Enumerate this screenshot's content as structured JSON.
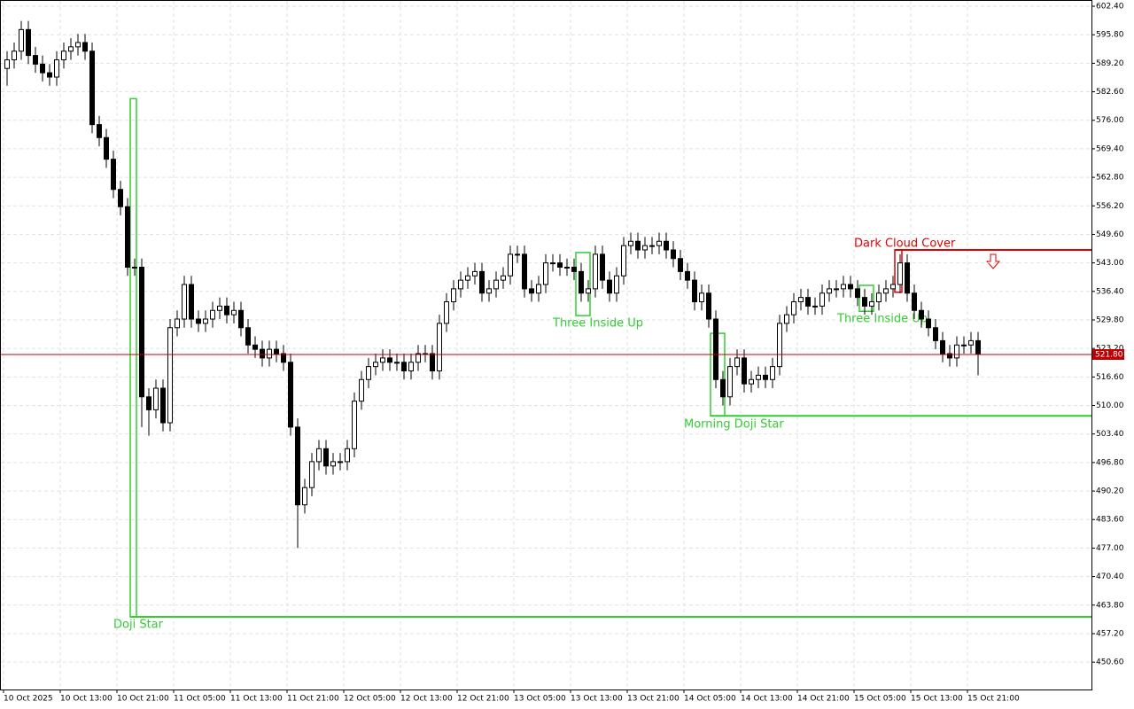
{
  "chart_data": {
    "type": "candlestick",
    "categories": [
      "10 Oct 2025",
      null,
      null,
      null,
      null,
      null,
      null,
      null,
      "10 Oct 13:00",
      null,
      null,
      null,
      null,
      null,
      null,
      null,
      "10 Oct 21:00",
      null,
      null,
      null,
      null,
      null,
      null,
      null,
      "11 Oct 05:00",
      null,
      null,
      null,
      null,
      null,
      null,
      null,
      "11 Oct 13:00",
      null,
      null,
      null,
      null,
      null,
      null,
      null,
      "11 Oct 21:00",
      null,
      null,
      null,
      null,
      null,
      null,
      null,
      "12 Oct 05:00",
      null,
      null,
      null,
      null,
      null,
      null,
      null,
      "12 Oct 13:00",
      null,
      null,
      null,
      null,
      null,
      null,
      null,
      "12 Oct 21:00",
      null,
      null,
      null,
      null,
      null,
      null,
      null,
      "13 Oct 05:00",
      null,
      null,
      null,
      null,
      null,
      null,
      null,
      "13 Oct 13:00",
      null,
      null,
      null,
      null,
      null,
      null,
      null,
      "13 Oct 21:00",
      null,
      null,
      null,
      null,
      null,
      null,
      null,
      "14 Oct 05:00",
      null,
      null,
      null,
      null,
      null,
      null,
      null,
      "14 Oct 13:00",
      null,
      null,
      null,
      null,
      null,
      null,
      null,
      "14 Oct 21:00",
      null,
      null,
      null,
      null,
      null,
      null,
      null,
      "15 Oct 05:00",
      null,
      null,
      null,
      null,
      null,
      null,
      null,
      "15 Oct 13:00",
      null,
      null,
      null,
      null,
      null,
      null,
      null,
      "15 Oct 21:00",
      null
    ],
    "open": [
      588,
      590,
      592,
      597,
      591,
      589,
      587,
      586,
      590,
      592,
      593,
      594,
      592,
      575,
      572,
      567,
      560,
      556,
      542,
      542,
      512,
      509,
      514,
      506,
      528,
      530,
      538,
      530,
      529,
      530,
      532,
      533,
      531,
      532,
      528,
      524,
      523,
      521,
      523,
      522,
      520,
      505,
      487,
      491,
      497,
      500,
      496,
      497,
      497,
      500,
      511,
      516,
      519,
      520,
      521,
      520,
      520,
      518,
      520,
      522,
      522,
      518,
      529,
      534,
      537,
      539,
      540,
      541,
      536,
      537,
      539,
      540,
      545,
      545,
      537,
      536,
      538,
      543,
      543,
      542,
      542,
      541,
      536,
      537,
      545,
      539,
      536,
      540,
      547,
      548,
      546,
      547,
      547,
      548,
      546,
      544,
      541,
      539,
      534,
      536,
      530,
      516,
      512,
      519,
      521,
      515,
      516,
      517,
      516,
      519,
      529,
      531,
      534,
      535,
      533,
      533,
      536,
      537,
      537,
      538,
      537,
      535,
      533,
      534,
      536,
      537,
      538,
      543,
      536,
      532,
      530,
      528,
      525,
      522,
      521,
      524,
      524,
      525
    ],
    "high": [
      592,
      594,
      599,
      599,
      593,
      591,
      589,
      592,
      594,
      595,
      596,
      596,
      594,
      577,
      574,
      569,
      562,
      558,
      544,
      544,
      514,
      516,
      516,
      530,
      532,
      540,
      540,
      532,
      532,
      534,
      535,
      535,
      534,
      534,
      530,
      526,
      525,
      525,
      525,
      524,
      522,
      507,
      493,
      499,
      502,
      502,
      499,
      499,
      502,
      513,
      518,
      521,
      522,
      523,
      523,
      522,
      522,
      522,
      524,
      524,
      524,
      531,
      536,
      539,
      541,
      542,
      543,
      543,
      539,
      541,
      542,
      547,
      547,
      547,
      539,
      540,
      545,
      545,
      545,
      544,
      544,
      543,
      539,
      547,
      547,
      541,
      542,
      549,
      550,
      550,
      549,
      549,
      550,
      550,
      548,
      546,
      543,
      541,
      538,
      538,
      532,
      518,
      521,
      523,
      523,
      518,
      519,
      519,
      521,
      531,
      533,
      536,
      537,
      537,
      535,
      538,
      539,
      539,
      540,
      540,
      539,
      537,
      536,
      538,
      539,
      540,
      545,
      545,
      538,
      534,
      532,
      530,
      527,
      524,
      526,
      526,
      527,
      527
    ],
    "low": [
      584,
      588,
      590,
      589,
      587,
      585,
      584,
      584,
      588,
      590,
      591,
      590,
      573,
      570,
      565,
      558,
      554,
      540,
      540,
      505,
      503,
      507,
      504,
      504,
      526,
      528,
      528,
      527,
      527,
      528,
      530,
      529,
      529,
      526,
      522,
      521,
      519,
      519,
      520,
      518,
      503,
      477,
      485,
      489,
      495,
      494,
      494,
      495,
      495,
      498,
      509,
      514,
      517,
      518,
      518,
      518,
      516,
      516,
      518,
      520,
      516,
      516,
      527,
      532,
      535,
      537,
      538,
      534,
      534,
      535,
      537,
      538,
      543,
      535,
      534,
      534,
      536,
      541,
      540,
      540,
      539,
      534,
      534,
      535,
      537,
      534,
      534,
      538,
      545,
      544,
      544,
      545,
      545,
      544,
      542,
      539,
      537,
      532,
      532,
      528,
      514,
      510,
      510,
      517,
      513,
      513,
      514,
      514,
      514,
      517,
      527,
      529,
      532,
      531,
      531,
      531,
      534,
      535,
      535,
      535,
      533,
      531,
      531,
      532,
      534,
      535,
      536,
      534,
      530,
      528,
      526,
      523,
      520,
      519,
      519,
      522,
      522,
      517
    ],
    "close": [
      590,
      592,
      597,
      591,
      589,
      587,
      586,
      590,
      592,
      593,
      594,
      592,
      575,
      572,
      567,
      560,
      556,
      542,
      542,
      512,
      509,
      514,
      506,
      528,
      530,
      538,
      530,
      529,
      530,
      532,
      533,
      531,
      532,
      528,
      524,
      523,
      521,
      523,
      522,
      520,
      505,
      487,
      491,
      497,
      500,
      496,
      497,
      497,
      500,
      511,
      516,
      519,
      520,
      521,
      520,
      520,
      518,
      520,
      522,
      522,
      518,
      529,
      534,
      537,
      539,
      540,
      541,
      536,
      537,
      539,
      540,
      545,
      545,
      537,
      536,
      538,
      543,
      543,
      542,
      542,
      541,
      536,
      537,
      545,
      539,
      536,
      540,
      547,
      548,
      546,
      547,
      547,
      548,
      546,
      544,
      541,
      539,
      534,
      536,
      530,
      516,
      512,
      519,
      521,
      515,
      516,
      517,
      516,
      519,
      529,
      531,
      534,
      535,
      533,
      533,
      536,
      537,
      537,
      538,
      537,
      535,
      533,
      534,
      536,
      537,
      538,
      543,
      536,
      532,
      530,
      528,
      525,
      522,
      521,
      524,
      524,
      525,
      521.8
    ],
    "up_color": "#ffffff",
    "down_color": "#000000",
    "ylim": [
      444.27,
      603.84
    ],
    "yticks": [
      {
        "value": 602.4,
        "label": "602.40"
      },
      {
        "value": 595.8,
        "label": "595.80"
      },
      {
        "value": 589.2,
        "label": "589.20"
      },
      {
        "value": 582.6,
        "label": "582.60"
      },
      {
        "value": 576,
        "label": "576.00"
      },
      {
        "value": 569.4,
        "label": "569.40"
      },
      {
        "value": 562.8,
        "label": "562.80"
      },
      {
        "value": 556.2,
        "label": "556.20"
      },
      {
        "value": 549.6,
        "label": "549.60"
      },
      {
        "value": 543,
        "label": "543.00"
      },
      {
        "value": 536.4,
        "label": "536.40"
      },
      {
        "value": 529.8,
        "label": "529.80"
      },
      {
        "value": 523.2,
        "label": "523.20"
      },
      {
        "value": 516.6,
        "label": "516.60"
      },
      {
        "value": 510,
        "label": "510.00"
      },
      {
        "value": 503.4,
        "label": "503.40"
      },
      {
        "value": 496.8,
        "label": "496.80"
      },
      {
        "value": 490.2,
        "label": "490.20"
      },
      {
        "value": 483.6,
        "label": "483.60"
      },
      {
        "value": 477,
        "label": "477.00"
      },
      {
        "value": 470.4,
        "label": "470.40"
      },
      {
        "value": 463.8,
        "label": "463.80"
      },
      {
        "value": 457.2,
        "label": "457.20"
      },
      {
        "value": 450.6,
        "label": "450.60"
      }
    ],
    "grid": true,
    "current_price": {
      "value": 521.8,
      "label": "521.80",
      "color": "#c00000"
    },
    "annotations": [
      {
        "label": "Doji Star",
        "high": 581,
        "low": 461.1,
        "color": "#33cc33"
      },
      {
        "label": "Three Inside Up",
        "high": 545.4,
        "low": 530.8,
        "color": "#33cc33"
      },
      {
        "label": "Morning Doji Star",
        "high": 526.7,
        "low": 507.6,
        "color": "#33cc33"
      },
      {
        "label": "Three Inside Up",
        "high": 537.8,
        "low": 531.8,
        "color": "#33cc33"
      },
      {
        "label": "Dark Cloud Cover",
        "high": 546,
        "low": 536.2,
        "color": "#e00000"
      }
    ]
  }
}
